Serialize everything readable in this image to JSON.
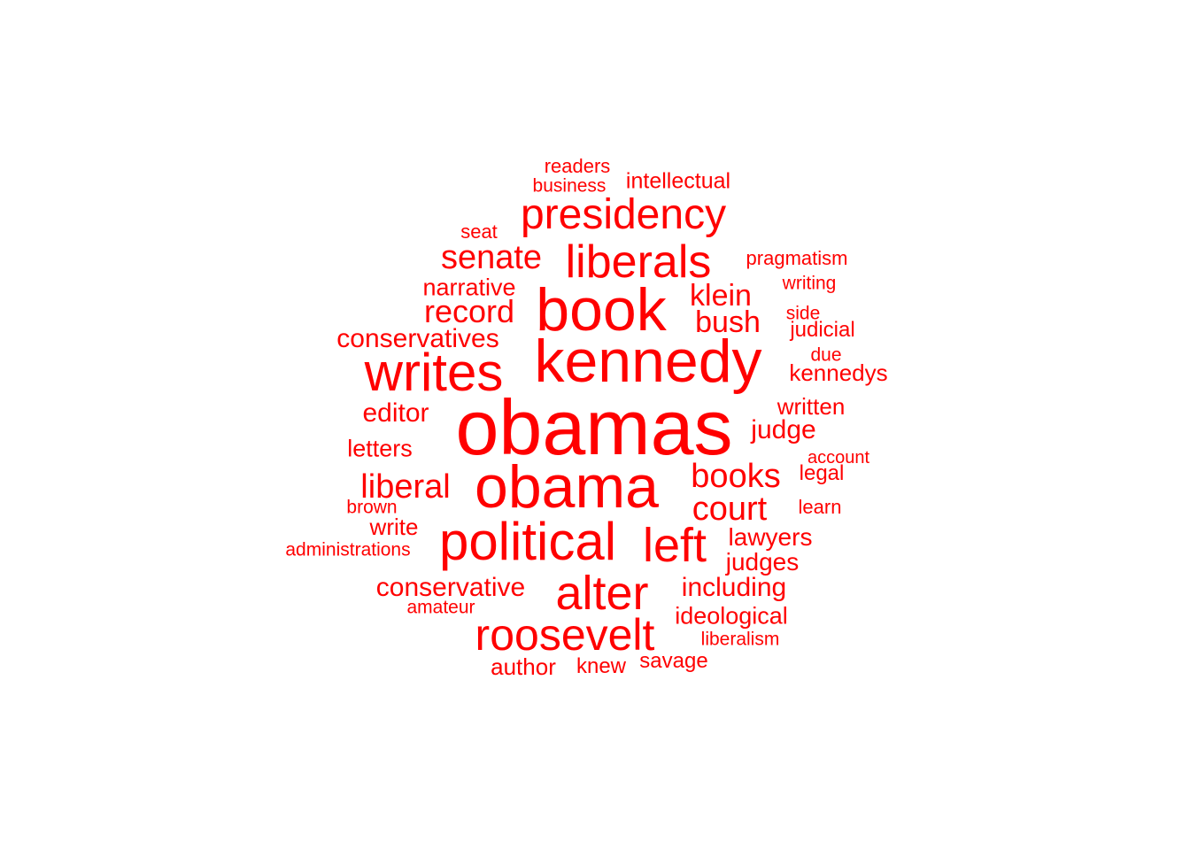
{
  "color": "#ff0000",
  "words": [
    {
      "text": "obamas",
      "rank": 1
    },
    {
      "text": "kennedy",
      "rank": 2
    },
    {
      "text": "book",
      "rank": 3
    },
    {
      "text": "obama",
      "rank": 4
    },
    {
      "text": "writes",
      "rank": 5
    },
    {
      "text": "political",
      "rank": 6
    },
    {
      "text": "alter",
      "rank": 7
    },
    {
      "text": "left",
      "rank": 8
    },
    {
      "text": "liberals",
      "rank": 9
    },
    {
      "text": "presidency",
      "rank": 10
    },
    {
      "text": "roosevelt",
      "rank": 11
    },
    {
      "text": "senate",
      "rank": 12
    },
    {
      "text": "liberal",
      "rank": 13
    },
    {
      "text": "books",
      "rank": 14
    },
    {
      "text": "court",
      "rank": 15
    },
    {
      "text": "record",
      "rank": 16
    },
    {
      "text": "klein",
      "rank": 17
    },
    {
      "text": "bush",
      "rank": 18
    },
    {
      "text": "conservatives",
      "rank": 19
    },
    {
      "text": "editor",
      "rank": 20
    },
    {
      "text": "judge",
      "rank": 21
    },
    {
      "text": "conservative",
      "rank": 22
    },
    {
      "text": "lawyers",
      "rank": 23
    },
    {
      "text": "including",
      "rank": 24
    },
    {
      "text": "judges",
      "rank": 25
    },
    {
      "text": "narrative",
      "rank": 26
    },
    {
      "text": "letters",
      "rank": 27
    },
    {
      "text": "ideological",
      "rank": 28
    },
    {
      "text": "kennedys",
      "rank": 29
    },
    {
      "text": "written",
      "rank": 30
    },
    {
      "text": "author",
      "rank": 31
    },
    {
      "text": "write",
      "rank": 32
    },
    {
      "text": "intellectual",
      "rank": 33
    },
    {
      "text": "savage",
      "rank": 34
    },
    {
      "text": "judicial",
      "rank": 35
    },
    {
      "text": "knew",
      "rank": 36
    },
    {
      "text": "pragmatism",
      "rank": 37
    },
    {
      "text": "legal",
      "rank": 38
    },
    {
      "text": "learn",
      "rank": 39
    },
    {
      "text": "readers",
      "rank": 40
    },
    {
      "text": "business",
      "rank": 41
    },
    {
      "text": "seat",
      "rank": 42
    },
    {
      "text": "writing",
      "rank": 43
    },
    {
      "text": "brown",
      "rank": 44
    },
    {
      "text": "liberalism",
      "rank": 45
    },
    {
      "text": "due",
      "rank": 46
    },
    {
      "text": "side",
      "rank": 47
    },
    {
      "text": "account",
      "rank": 48
    },
    {
      "text": "amateur",
      "rank": 49
    },
    {
      "text": "administrations",
      "rank": 50
    }
  ]
}
